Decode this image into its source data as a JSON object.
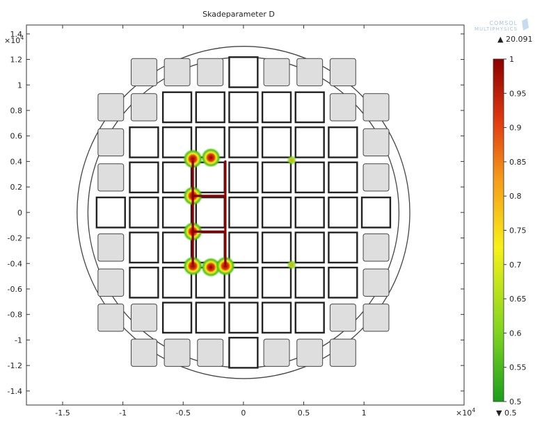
{
  "title": "Skadeparameter D",
  "brand": {
    "line1": "COMSOL",
    "line2": "MULTIPHYSICS"
  },
  "axis": {
    "exponent_base": "×10",
    "exponent_power": "4",
    "xlim": [
      -1.8,
      1.83
    ],
    "ylim": [
      -1.51,
      1.47
    ],
    "x_ticks": [
      "-1.5",
      "-1",
      "-0.5",
      "0",
      "0.5",
      "1"
    ],
    "x_tick_values": [
      -1.5,
      -1,
      -0.5,
      0,
      0.5,
      1
    ],
    "y_ticks": [
      "1.4",
      "1.2",
      "1",
      "0.8",
      "0.6",
      "0.4",
      "0.2",
      "0",
      "-0.2",
      "-0.4",
      "-0.6",
      "-0.8",
      "-1",
      "-1.2",
      "-1.4"
    ],
    "y_tick_values": [
      1.4,
      1.2,
      1,
      0.8,
      0.6,
      0.4,
      0.2,
      0,
      -0.2,
      -0.4,
      -0.6,
      -0.8,
      -1,
      -1.2,
      -1.4
    ]
  },
  "colorbar": {
    "max_marker": "▲ 20.091",
    "min_marker": "▼ 0.5",
    "ticks": [
      "1",
      "0.95",
      "0.9",
      "0.85",
      "0.8",
      "0.75",
      "0.7",
      "0.65",
      "0.6",
      "0.55",
      "0.5"
    ],
    "tick_values": [
      1,
      0.95,
      0.9,
      0.85,
      0.8,
      0.75,
      0.7,
      0.65,
      0.6,
      0.55,
      0.5
    ],
    "colors": [
      "#1a9e1a",
      "#7ed321",
      "#f7f01a",
      "#f59a1a",
      "#e03a10",
      "#8b0000"
    ]
  },
  "chart_data": {
    "type": "heatmap",
    "title": "Skadeparameter D",
    "xlabel": "",
    "ylabel": "",
    "units_exponent": "×10^4",
    "xlim": [
      -1.8,
      1.83
    ],
    "ylim": [
      -1.51,
      1.47
    ],
    "color_range": [
      0.5,
      1
    ],
    "data_max": 20.091,
    "data_min": 0.5,
    "damage_paths": [
      {
        "x": [
          -0.42,
          -0.42
        ],
        "y": [
          -0.4,
          0.4
        ],
        "value": 1
      },
      {
        "x": [
          -0.42,
          -0.15
        ],
        "y": [
          0.13,
          0.13
        ],
        "value": 1
      },
      {
        "x": [
          -0.42,
          -0.15
        ],
        "y": [
          -0.15,
          -0.15
        ],
        "value": 1
      },
      {
        "x": [
          -0.15,
          -0.15
        ],
        "y": [
          -0.4,
          0.4
        ],
        "value": 1
      }
    ],
    "damage_hotspots": [
      {
        "x": -0.42,
        "y": 0.42,
        "value": 1
      },
      {
        "x": -0.27,
        "y": 0.43,
        "value": 1
      },
      {
        "x": -0.42,
        "y": 0.13,
        "value": 1
      },
      {
        "x": -0.42,
        "y": -0.15,
        "value": 1
      },
      {
        "x": -0.42,
        "y": -0.42,
        "value": 1
      },
      {
        "x": -0.27,
        "y": -0.43,
        "value": 1
      },
      {
        "x": -0.15,
        "y": -0.42,
        "value": 1
      },
      {
        "x": 0.4,
        "y": 0.41,
        "value": 0.75
      },
      {
        "x": 0.4,
        "y": -0.41,
        "value": 0.75
      }
    ],
    "grid": false,
    "legend": "colorbar right"
  }
}
